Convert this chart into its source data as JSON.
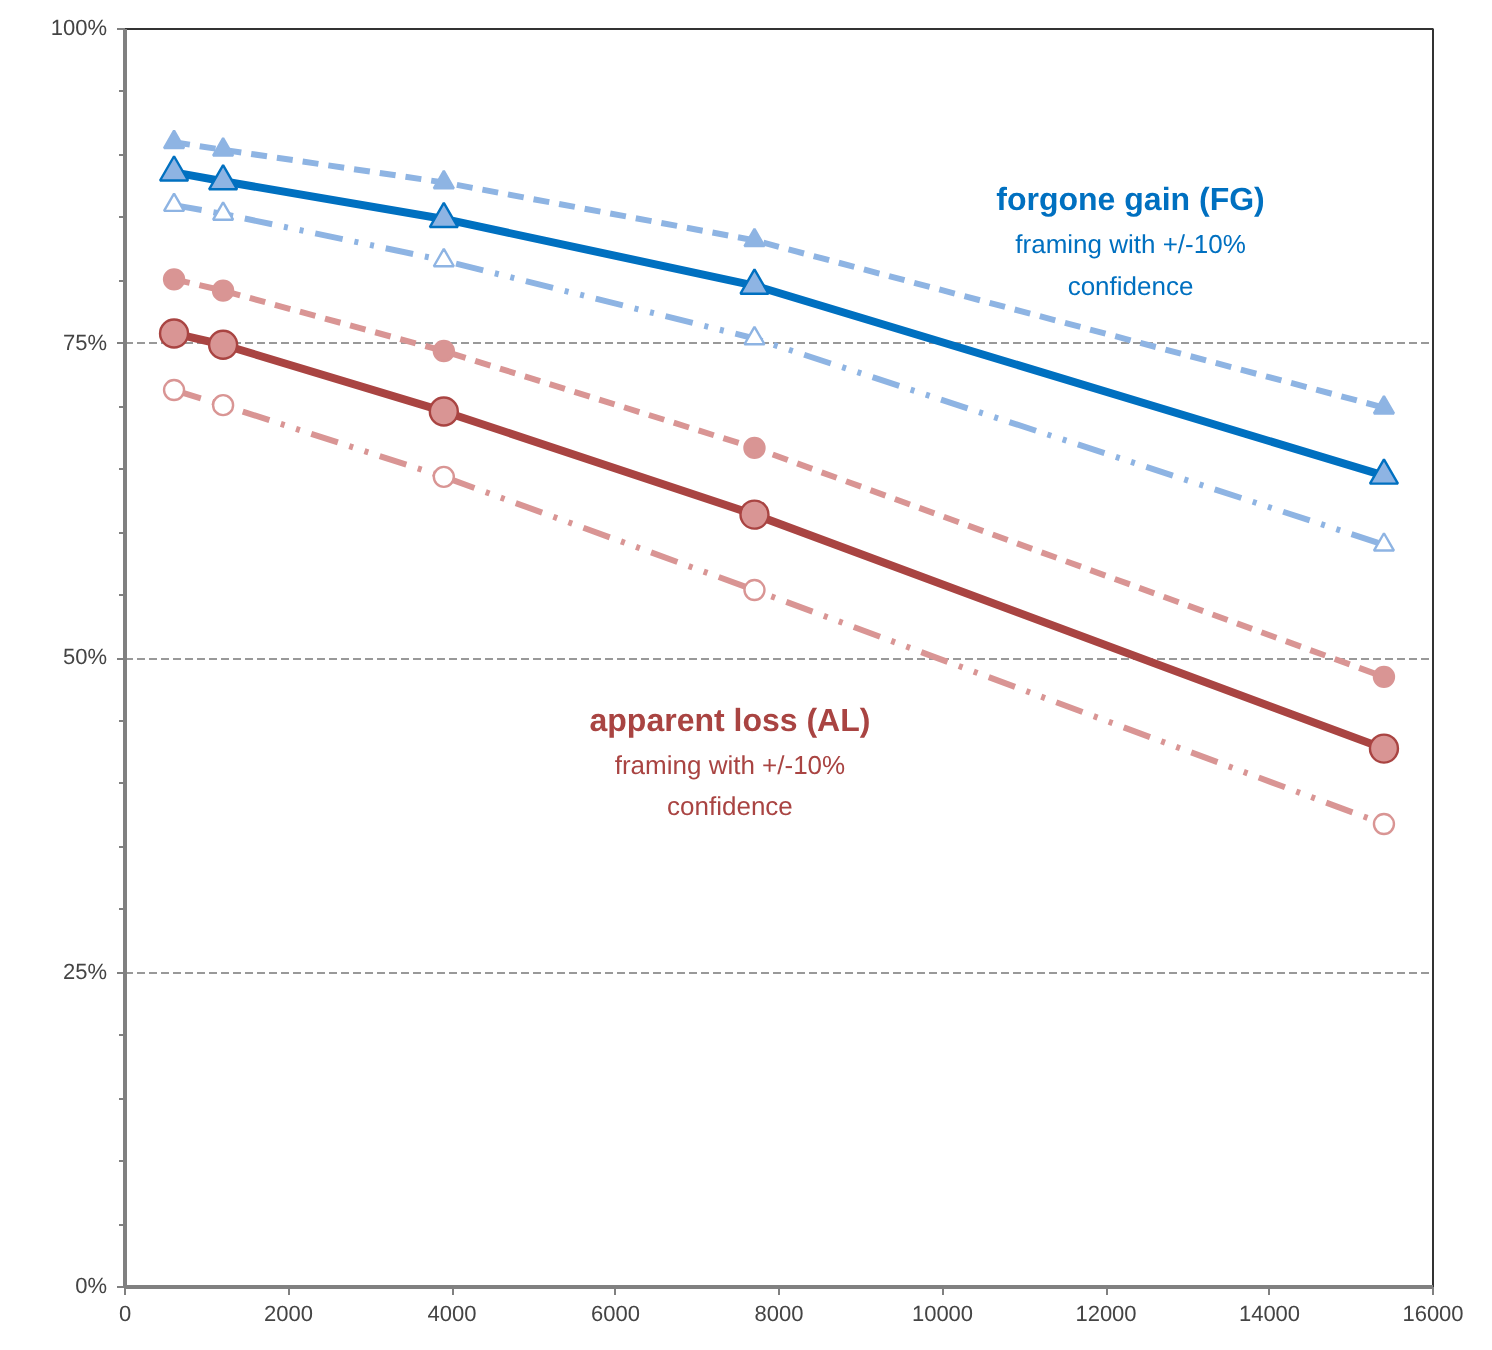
{
  "chart_data": {
    "type": "line",
    "x": [
      600,
      1200,
      3900,
      7700,
      15400
    ],
    "xlim": [
      0,
      16000
    ],
    "xticks": [
      0,
      2000,
      4000,
      6000,
      8000,
      10000,
      12000,
      14000,
      16000
    ],
    "ylim": [
      0,
      100
    ],
    "yticks": [
      {
        "value": 0,
        "label": "0%"
      },
      {
        "value": 25,
        "label": "25%"
      },
      {
        "value": 50,
        "label": "50%"
      },
      {
        "value": 75,
        "label": "75%"
      },
      {
        "value": 100,
        "label": "100%"
      }
    ],
    "grid": "y",
    "series": [
      {
        "color": "#8eb4e3",
        "values": [
          91.0,
          90.4,
          87.8,
          83.2,
          69.9
        ],
        "marker": "triangle",
        "line_style": "dashed"
      },
      {
        "name": "forgone gain (FG)",
        "color": "#0070c0",
        "values": [
          88.6,
          87.9,
          84.9,
          79.6,
          64.5
        ],
        "marker": "triangle",
        "line_style": "solid"
      },
      {
        "color": "#8eb4e3",
        "values": [
          86.0,
          85.3,
          81.6,
          75.4,
          59.0
        ],
        "marker": "triangle",
        "line_style": "dashdot"
      },
      {
        "color": "#d99594",
        "values": [
          80.1,
          79.2,
          74.4,
          66.7,
          48.5
        ],
        "marker": "circle",
        "line_style": "dashed"
      },
      {
        "name": "apparent loss (AL)",
        "color": "#a94442",
        "values": [
          75.8,
          74.9,
          69.6,
          61.4,
          42.8
        ],
        "marker": "circle",
        "line_style": "solid"
      },
      {
        "color": "#d99594",
        "values": [
          71.3,
          70.1,
          64.4,
          55.4,
          36.8
        ],
        "marker": "circle",
        "line_style": "dashdot"
      }
    ],
    "annotations": [
      "framing with +/-10% confidence",
      "framing with +/-10% confidence"
    ]
  }
}
